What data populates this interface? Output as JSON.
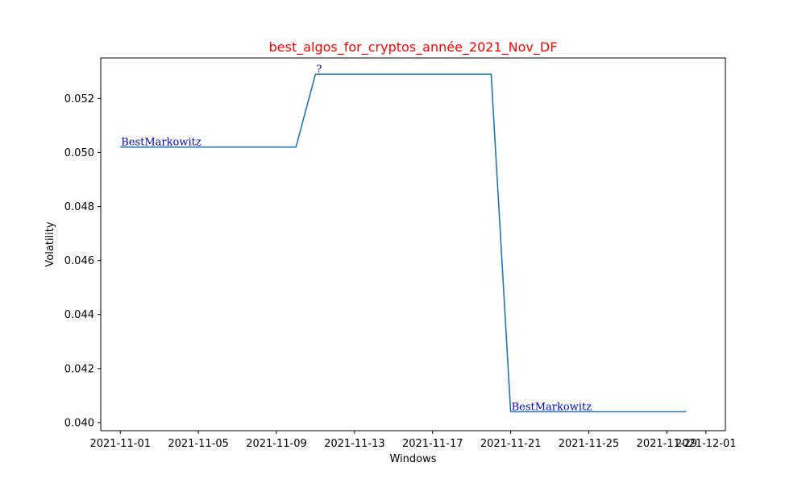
{
  "chart_data": {
    "type": "line",
    "title": "best_algos_for_cryptos_année_2021_Nov_DF",
    "xlabel": "Windows",
    "ylabel": "Volatility",
    "x_is_date": true,
    "xlim": [
      "2021-10-31",
      "2021-12-02"
    ],
    "ylim": [
      0.0397,
      0.0535
    ],
    "x_ticks": [
      "2021-11-01",
      "2021-11-05",
      "2021-11-09",
      "2021-11-13",
      "2021-11-17",
      "2021-11-21",
      "2021-11-25",
      "2021-11-29",
      "2021-12-01"
    ],
    "y_ticks": [
      0.04,
      0.042,
      0.044,
      0.046,
      0.048,
      0.05,
      0.052
    ],
    "y_tick_labels": [
      "0.040",
      "0.042",
      "0.044",
      "0.046",
      "0.048",
      "0.050",
      "0.052"
    ],
    "grid": false,
    "series": [
      {
        "color": "#1f77b4",
        "x": [
          "2021-11-01",
          "2021-11-10",
          "2021-11-11",
          "2021-11-20",
          "2021-11-21",
          "2021-11-30"
        ],
        "y": [
          0.0502,
          0.0502,
          0.0529,
          0.0529,
          0.0404,
          0.0404
        ]
      }
    ],
    "annotations": [
      {
        "text": "BestMarkowitz",
        "x": "2021-11-01",
        "y": 0.0502,
        "color": "#0000cc"
      },
      {
        "text": "?",
        "x": "2021-11-11",
        "y": 0.0529,
        "color": "#0000cc"
      },
      {
        "text": "BestMarkowitz",
        "x": "2021-11-21",
        "y": 0.0404,
        "color": "#0000cc"
      }
    ],
    "title_color": "#ff0000"
  }
}
